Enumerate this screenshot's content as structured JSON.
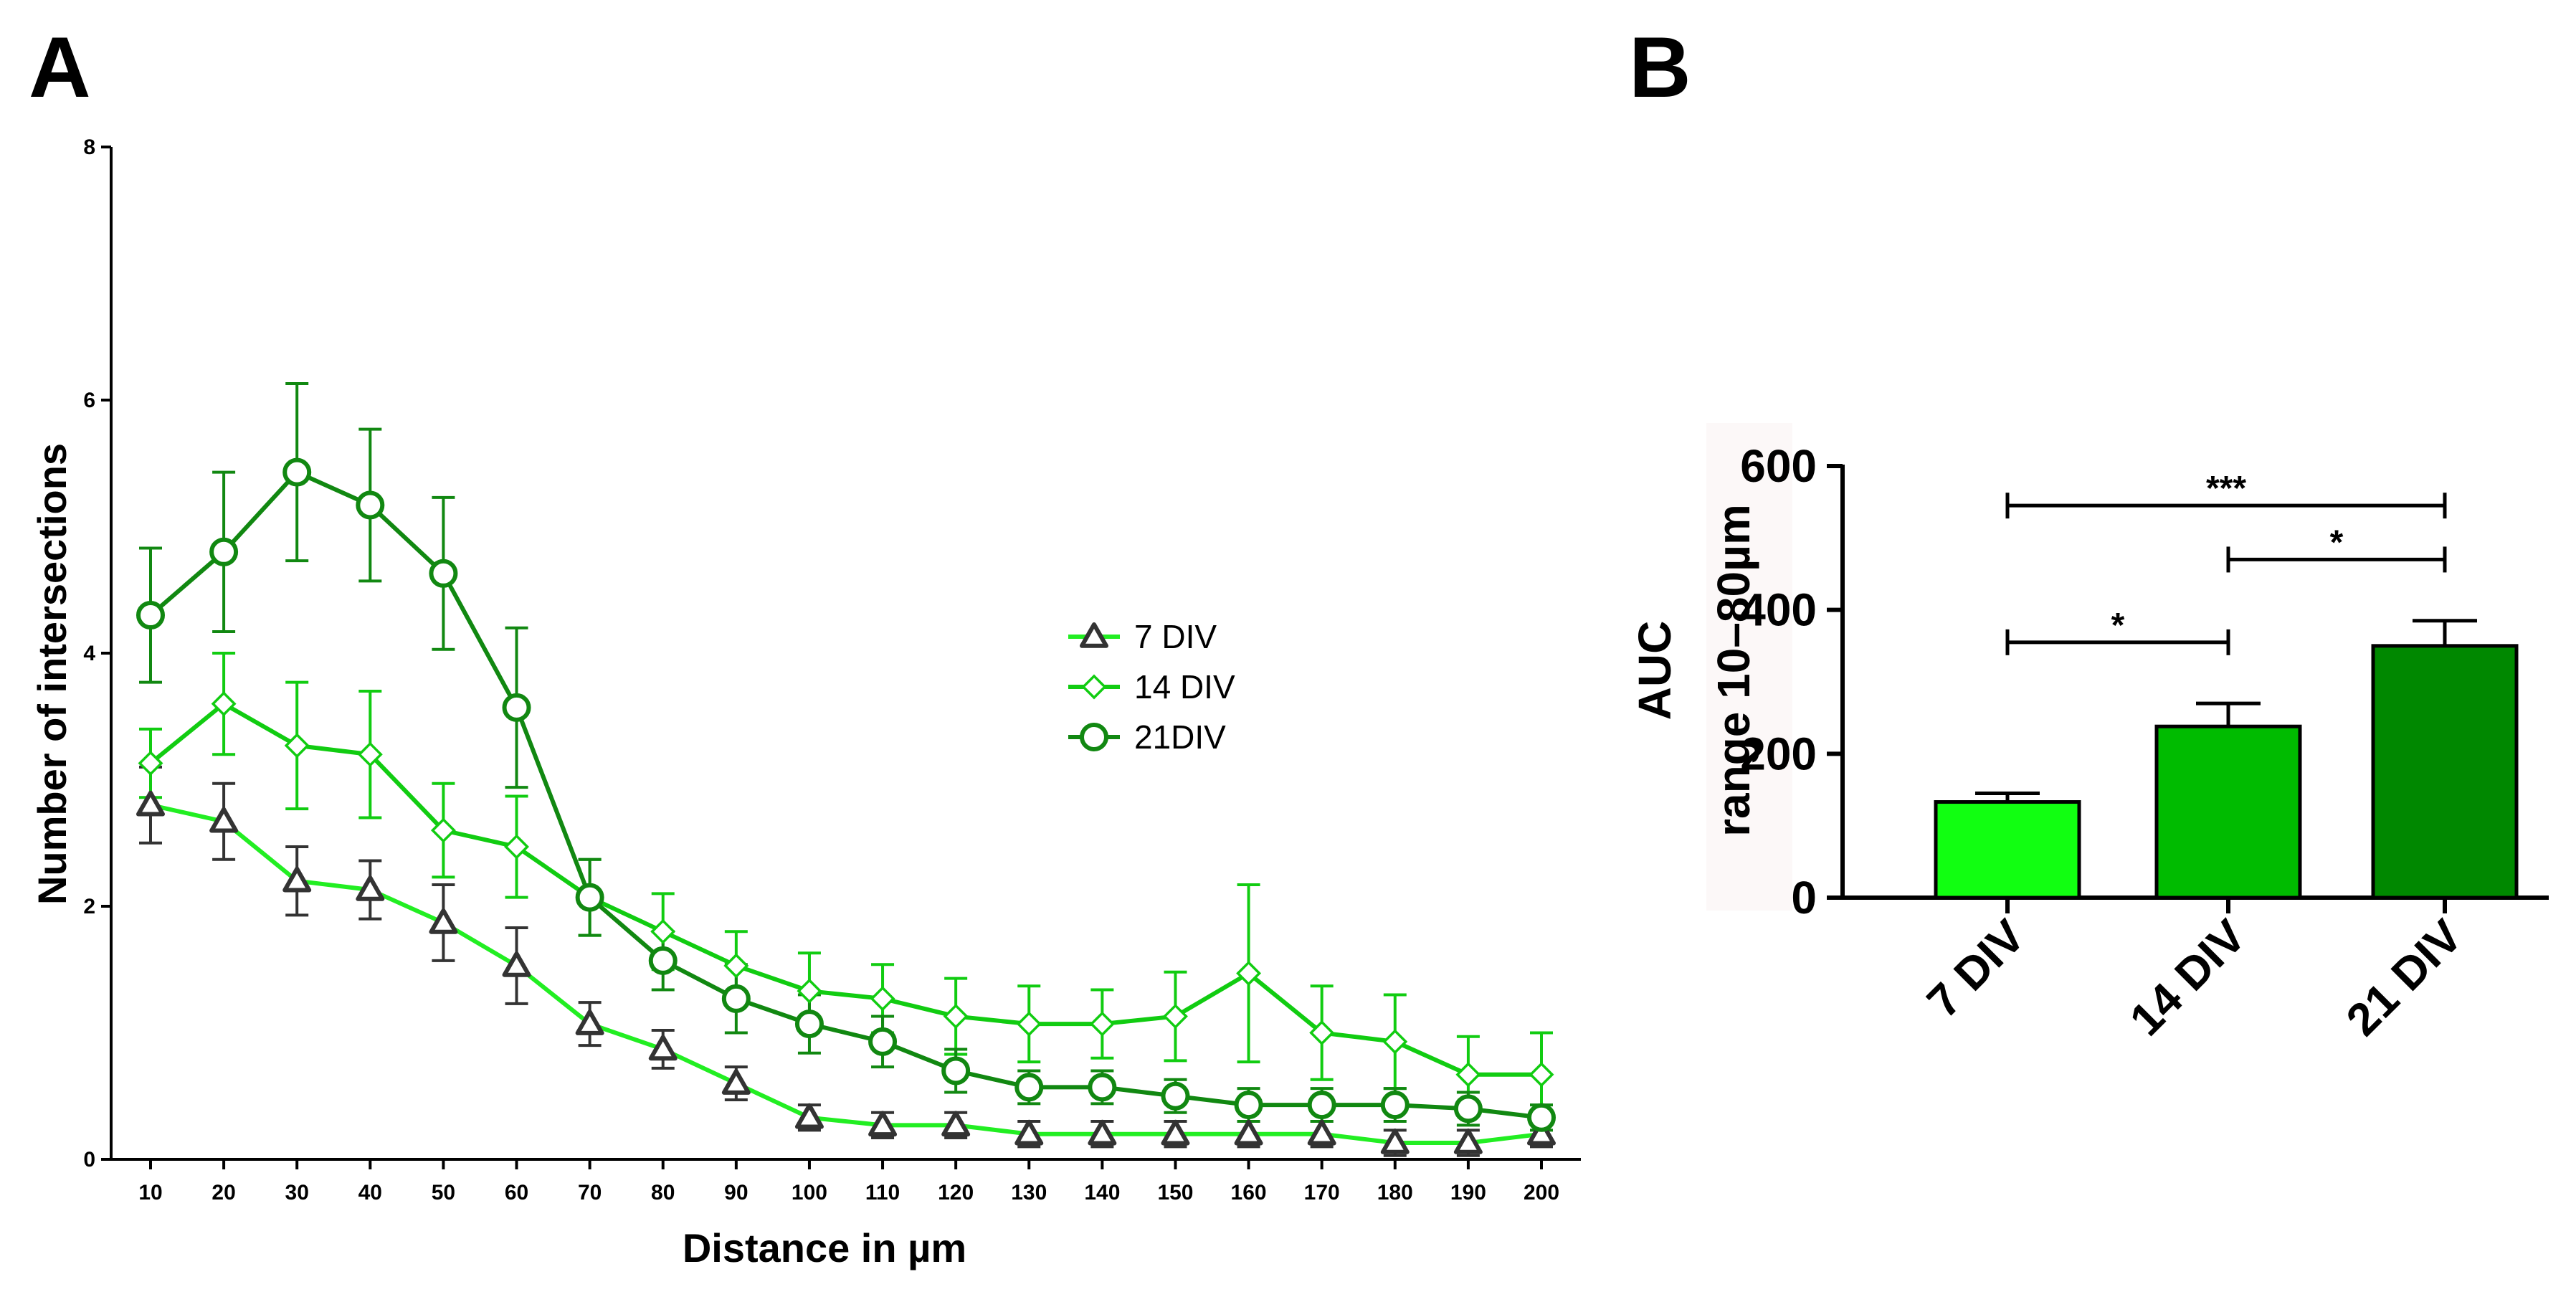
{
  "panels": {
    "a_label": "A",
    "b_label": "B"
  },
  "colors": {
    "div7": "#22ee22",
    "div14": "#11cc11",
    "div21": "#118811",
    "marker7": "#333333",
    "bar7": "#11ff11",
    "bar14": "#00bb00",
    "bar21": "#008800",
    "axis": "#000000"
  },
  "chart_data": [
    {
      "type": "line",
      "title": "",
      "xlabel": "Distance in µm",
      "ylabel": "Number of intersections",
      "x": [
        10,
        20,
        30,
        40,
        50,
        60,
        70,
        80,
        90,
        100,
        110,
        120,
        130,
        140,
        150,
        160,
        170,
        180,
        190,
        200
      ],
      "x_tick_labels": [
        "10",
        "20",
        "30",
        "40",
        "50",
        "60",
        "70",
        "80",
        "90",
        "100",
        "110",
        "120",
        "130",
        "140",
        "150",
        "160",
        "170",
        "180",
        "190",
        "200"
      ],
      "ylim": [
        0,
        8
      ],
      "y_ticks": [
        0,
        2,
        4,
        6,
        8
      ],
      "y_tick_labels": [
        "0",
        "2",
        "4",
        "6",
        "8"
      ],
      "legend_position": "right",
      "series": [
        {
          "name": "7   DIV",
          "marker": "triangle",
          "values": [
            2.8,
            2.67,
            2.2,
            2.13,
            1.87,
            1.53,
            1.07,
            0.87,
            0.6,
            0.33,
            0.27,
            0.27,
            0.2,
            0.2,
            0.2,
            0.2,
            0.2,
            0.13,
            0.13,
            0.2
          ],
          "errors": [
            0.3,
            0.3,
            0.27,
            0.23,
            0.3,
            0.3,
            0.17,
            0.15,
            0.13,
            0.1,
            0.1,
            0.1,
            0.1,
            0.1,
            0.1,
            0.1,
            0.1,
            0.1,
            0.1,
            0.1
          ]
        },
        {
          "name": "14 DIV",
          "marker": "diamond",
          "values": [
            3.13,
            3.6,
            3.27,
            3.2,
            2.6,
            2.47,
            2.07,
            1.8,
            1.53,
            1.33,
            1.27,
            1.13,
            1.07,
            1.07,
            1.13,
            1.47,
            1.0,
            0.93,
            0.67,
            0.67
          ],
          "errors": [
            0.27,
            0.4,
            0.5,
            0.5,
            0.37,
            0.4,
            0.3,
            0.3,
            0.27,
            0.3,
            0.27,
            0.3,
            0.3,
            0.27,
            0.35,
            0.7,
            0.37,
            0.37,
            0.3,
            0.33
          ]
        },
        {
          "name": "21DIV",
          "marker": "circle",
          "values": [
            4.3,
            4.8,
            5.43,
            5.17,
            4.63,
            3.57,
            2.07,
            1.57,
            1.27,
            1.07,
            0.93,
            0.7,
            0.57,
            0.57,
            0.5,
            0.43,
            0.43,
            0.43,
            0.4,
            0.33
          ],
          "errors": [
            0.53,
            0.63,
            0.7,
            0.6,
            0.6,
            0.63,
            0.3,
            0.23,
            0.27,
            0.23,
            0.2,
            0.17,
            0.13,
            0.13,
            0.13,
            0.13,
            0.13,
            0.13,
            0.13,
            0.1
          ]
        }
      ]
    },
    {
      "type": "bar",
      "title": "",
      "xlabel": "",
      "ylabel": "AUC",
      "ylabel_line2": "range 10–80µm",
      "categories": [
        "7 DIV",
        "14 DIV",
        "21 DIV"
      ],
      "values": [
        133,
        238,
        350
      ],
      "errors": [
        12,
        32,
        35
      ],
      "ylim": [
        0,
        600
      ],
      "y_ticks": [
        0,
        200,
        400,
        600
      ],
      "y_tick_labels": [
        "0",
        "200",
        "400",
        "600"
      ],
      "significance": [
        {
          "from": 0,
          "to": 1,
          "label": "*",
          "level": 355
        },
        {
          "from": 1,
          "to": 2,
          "label": "*",
          "level": 470
        },
        {
          "from": 0,
          "to": 2,
          "label": "***",
          "level": 545
        }
      ]
    }
  ]
}
